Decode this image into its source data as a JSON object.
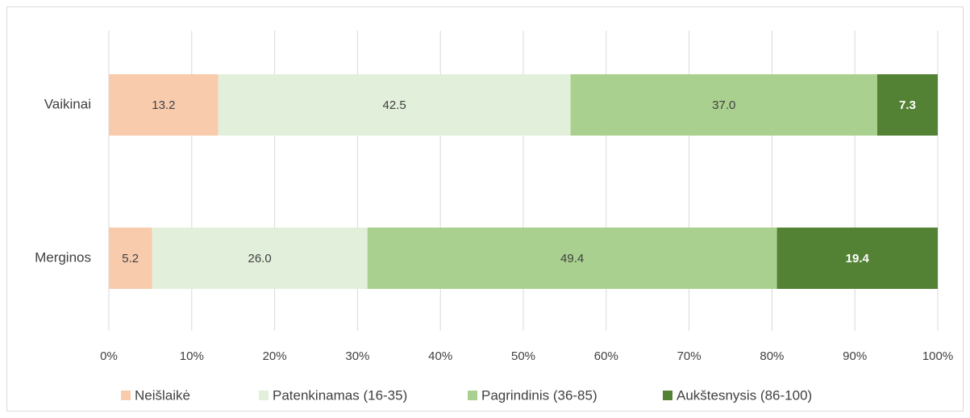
{
  "chart_data": {
    "type": "stacked-bar-horizontal",
    "categories": [
      "Vaikinai",
      "Merginos"
    ],
    "series": [
      {
        "name": "Neišlaikė",
        "color": "#f8cbad",
        "values": [
          13.2,
          5.2
        ],
        "value_labels": [
          "13.2",
          "5.2"
        ]
      },
      {
        "name": "Patenkinamas (16-35)",
        "color": "#e2efda",
        "values": [
          42.5,
          26.0
        ],
        "value_labels": [
          "42.5",
          "26.0"
        ]
      },
      {
        "name": "Pagrindinis (36-85)",
        "color": "#a9d08e",
        "values": [
          37.0,
          49.4
        ],
        "value_labels": [
          "37.0",
          "49.4"
        ]
      },
      {
        "name": "Aukštesnysis (86-100)",
        "color": "#548235",
        "values": [
          7.3,
          19.4
        ],
        "value_labels": [
          "7.3",
          "19.4"
        ]
      }
    ],
    "xlim": [
      0,
      100
    ],
    "xticks": [
      {
        "value": 0,
        "label": "0%"
      },
      {
        "value": 10,
        "label": "10%"
      },
      {
        "value": 20,
        "label": "20%"
      },
      {
        "value": 30,
        "label": "30%"
      },
      {
        "value": 40,
        "label": "40%"
      },
      {
        "value": 50,
        "label": "50%"
      },
      {
        "value": 60,
        "label": "60%"
      },
      {
        "value": 70,
        "label": "70%"
      },
      {
        "value": 80,
        "label": "80%"
      },
      {
        "value": 90,
        "label": "90%"
      },
      {
        "value": 100,
        "label": "100%"
      }
    ],
    "grid": true,
    "legend": "bottom"
  }
}
